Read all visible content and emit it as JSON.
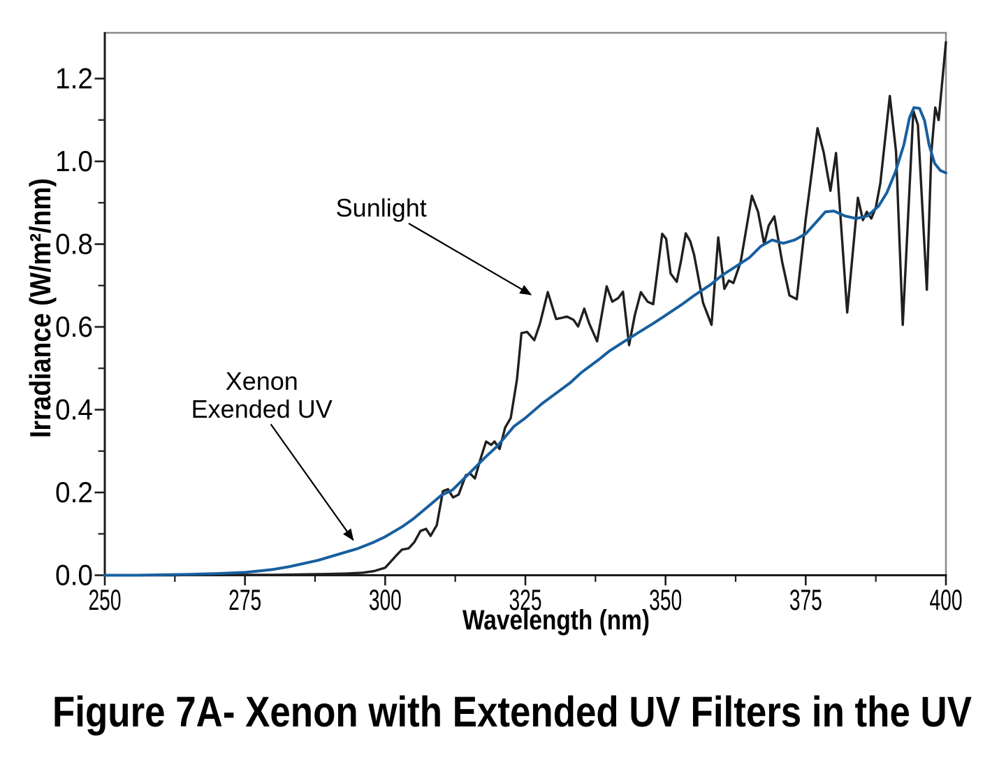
{
  "figure": {
    "title": "Figure 7A- Xenon with Extended UV Filters in the UV",
    "background": "#ffffff"
  },
  "chart_data": {
    "type": "line",
    "title": "",
    "xlabel": "Wavelength (nm)",
    "ylabel": "Irradiance (W/m²/nm)",
    "xlim": [
      250,
      400
    ],
    "ylim": [
      0,
      1.31
    ],
    "grid": false,
    "legend_position": "none (inline arrow annotations)",
    "frame_color": "#8a8a8a",
    "axis_color": "#1c1c1c",
    "x_tick_values": [
      250,
      275,
      300,
      325,
      350,
      375,
      400
    ],
    "x_tick_labels": [
      "250",
      "275",
      "300",
      "325",
      "350",
      "375",
      "400"
    ],
    "x_minor_ticks": [
      262.5,
      287.5,
      312.5,
      337.5,
      362.5,
      387.5
    ],
    "y_tick_values": [
      0.0,
      0.2,
      0.4,
      0.6,
      0.8,
      1.0,
      1.2
    ],
    "y_tick_labels": [
      "0.0",
      "0.2",
      "0.4",
      "0.6",
      "0.8",
      "1.0",
      "1.2"
    ],
    "y_minor_ticks": [
      0.1,
      0.3,
      0.5,
      0.7,
      0.9,
      1.1
    ],
    "series": [
      {
        "name": "Sunlight",
        "color": "#1f1f1f",
        "width": 3.4,
        "points": [
          [
            250,
            0.0
          ],
          [
            256,
            0.0
          ],
          [
            262,
            0.0
          ],
          [
            268,
            0.001
          ],
          [
            274,
            0.001
          ],
          [
            280,
            0.001
          ],
          [
            285,
            0.002
          ],
          [
            290,
            0.003
          ],
          [
            293,
            0.004
          ],
          [
            296,
            0.006
          ],
          [
            298,
            0.01
          ],
          [
            300,
            0.018
          ],
          [
            302,
            0.048
          ],
          [
            303,
            0.062
          ],
          [
            304.2,
            0.065
          ],
          [
            305.2,
            0.08
          ],
          [
            306.3,
            0.107
          ],
          [
            307.3,
            0.112
          ],
          [
            308.1,
            0.095
          ],
          [
            309.2,
            0.121
          ],
          [
            310.3,
            0.203
          ],
          [
            311.2,
            0.208
          ],
          [
            312.1,
            0.188
          ],
          [
            313.1,
            0.195
          ],
          [
            314.4,
            0.242
          ],
          [
            315.2,
            0.245
          ],
          [
            316,
            0.234
          ],
          [
            317,
            0.281
          ],
          [
            318,
            0.323
          ],
          [
            318.9,
            0.315
          ],
          [
            319.5,
            0.323
          ],
          [
            320.4,
            0.305
          ],
          [
            321.4,
            0.357
          ],
          [
            322.4,
            0.38
          ],
          [
            323.5,
            0.473
          ],
          [
            324.3,
            0.585
          ],
          [
            325.3,
            0.588
          ],
          [
            326.6,
            0.568
          ],
          [
            327.6,
            0.608
          ],
          [
            329,
            0.684
          ],
          [
            330.5,
            0.619
          ],
          [
            331.5,
            0.622
          ],
          [
            332.4,
            0.625
          ],
          [
            333.6,
            0.617
          ],
          [
            334.4,
            0.601
          ],
          [
            335.5,
            0.644
          ],
          [
            336.4,
            0.608
          ],
          [
            337.8,
            0.565
          ],
          [
            339.5,
            0.698
          ],
          [
            340.5,
            0.661
          ],
          [
            341.6,
            0.67
          ],
          [
            342.4,
            0.685
          ],
          [
            343.5,
            0.556
          ],
          [
            344.5,
            0.627
          ],
          [
            345.6,
            0.684
          ],
          [
            346.8,
            0.661
          ],
          [
            347.8,
            0.655
          ],
          [
            349.4,
            0.825
          ],
          [
            350.1,
            0.813
          ],
          [
            350.9,
            0.729
          ],
          [
            352,
            0.709
          ],
          [
            352.8,
            0.762
          ],
          [
            353.6,
            0.826
          ],
          [
            354.4,
            0.807
          ],
          [
            355.1,
            0.774
          ],
          [
            356.7,
            0.658
          ],
          [
            358.2,
            0.605
          ],
          [
            359.4,
            0.816
          ],
          [
            360.5,
            0.692
          ],
          [
            361.3,
            0.712
          ],
          [
            362.1,
            0.706
          ],
          [
            363.4,
            0.757
          ],
          [
            365.4,
            0.917
          ],
          [
            366.5,
            0.878
          ],
          [
            367.6,
            0.8
          ],
          [
            368.4,
            0.845
          ],
          [
            369.4,
            0.867
          ],
          [
            370.8,
            0.757
          ],
          [
            372.1,
            0.676
          ],
          [
            373.4,
            0.667
          ],
          [
            375,
            0.86
          ],
          [
            377.1,
            1.08
          ],
          [
            378.2,
            1.022
          ],
          [
            379.4,
            0.929
          ],
          [
            380.4,
            1.02
          ],
          [
            382.4,
            0.635
          ],
          [
            384.3,
            0.912
          ],
          [
            385.2,
            0.858
          ],
          [
            385.9,
            0.878
          ],
          [
            386.7,
            0.862
          ],
          [
            387.5,
            0.889
          ],
          [
            388.3,
            0.947
          ],
          [
            390,
            1.158
          ],
          [
            391.1,
            1.024
          ],
          [
            392.3,
            0.605
          ],
          [
            394.2,
            1.122
          ],
          [
            395,
            1.088
          ],
          [
            396.6,
            0.69
          ],
          [
            397.4,
            1.02
          ],
          [
            398.1,
            1.13
          ],
          [
            398.7,
            1.1
          ],
          [
            400,
            1.288
          ]
        ]
      },
      {
        "name": "Xenon Exended UV",
        "color": "#175f9f",
        "width": 4,
        "points": [
          [
            250,
            0.0
          ],
          [
            256,
            0.0
          ],
          [
            260,
            0.001
          ],
          [
            265,
            0.002
          ],
          [
            270,
            0.004
          ],
          [
            275,
            0.007
          ],
          [
            278,
            0.011
          ],
          [
            280,
            0.014
          ],
          [
            283,
            0.021
          ],
          [
            285,
            0.027
          ],
          [
            288,
            0.036
          ],
          [
            290,
            0.044
          ],
          [
            293,
            0.056
          ],
          [
            295,
            0.064
          ],
          [
            298,
            0.08
          ],
          [
            300,
            0.093
          ],
          [
            303,
            0.117
          ],
          [
            305,
            0.136
          ],
          [
            308,
            0.17
          ],
          [
            310,
            0.193
          ],
          [
            312,
            0.206
          ],
          [
            315,
            0.246
          ],
          [
            318,
            0.287
          ],
          [
            320,
            0.312
          ],
          [
            323,
            0.36
          ],
          [
            325,
            0.38
          ],
          [
            328,
            0.415
          ],
          [
            330,
            0.435
          ],
          [
            333,
            0.465
          ],
          [
            335,
            0.49
          ],
          [
            338,
            0.52
          ],
          [
            340,
            0.542
          ],
          [
            343,
            0.568
          ],
          [
            345,
            0.585
          ],
          [
            348,
            0.61
          ],
          [
            350,
            0.628
          ],
          [
            353,
            0.655
          ],
          [
            355,
            0.675
          ],
          [
            358,
            0.702
          ],
          [
            360,
            0.724
          ],
          [
            363,
            0.75
          ],
          [
            365,
            0.768
          ],
          [
            367,
            0.795
          ],
          [
            369,
            0.81
          ],
          [
            371,
            0.802
          ],
          [
            373,
            0.81
          ],
          [
            375,
            0.825
          ],
          [
            377,
            0.855
          ],
          [
            378.5,
            0.878
          ],
          [
            380,
            0.88
          ],
          [
            382,
            0.868
          ],
          [
            384,
            0.862
          ],
          [
            386,
            0.868
          ],
          [
            388,
            0.892
          ],
          [
            389.5,
            0.925
          ],
          [
            391,
            0.975
          ],
          [
            392.5,
            1.04
          ],
          [
            393.5,
            1.105
          ],
          [
            394.3,
            1.13
          ],
          [
            395.3,
            1.128
          ],
          [
            396.2,
            1.098
          ],
          [
            397,
            1.04
          ],
          [
            398,
            0.995
          ],
          [
            399,
            0.978
          ],
          [
            400,
            0.972
          ]
        ]
      }
    ],
    "annotations": [
      {
        "name": "sunlight",
        "lines": [
          "Sunlight"
        ],
        "text_x": 299.3,
        "text_y": 0.867,
        "arrow": {
          "x1": 304.2,
          "y1": 0.85,
          "x2": 326.0,
          "y2": 0.678
        }
      },
      {
        "name": "xenon-extended-uv",
        "lines": [
          "Xenon",
          "Exended UV"
        ],
        "text_x": 278.0,
        "text_y": 0.448,
        "arrow": {
          "x1": 279.6,
          "y1": 0.365,
          "x2": 294.3,
          "y2": 0.085
        }
      }
    ]
  }
}
